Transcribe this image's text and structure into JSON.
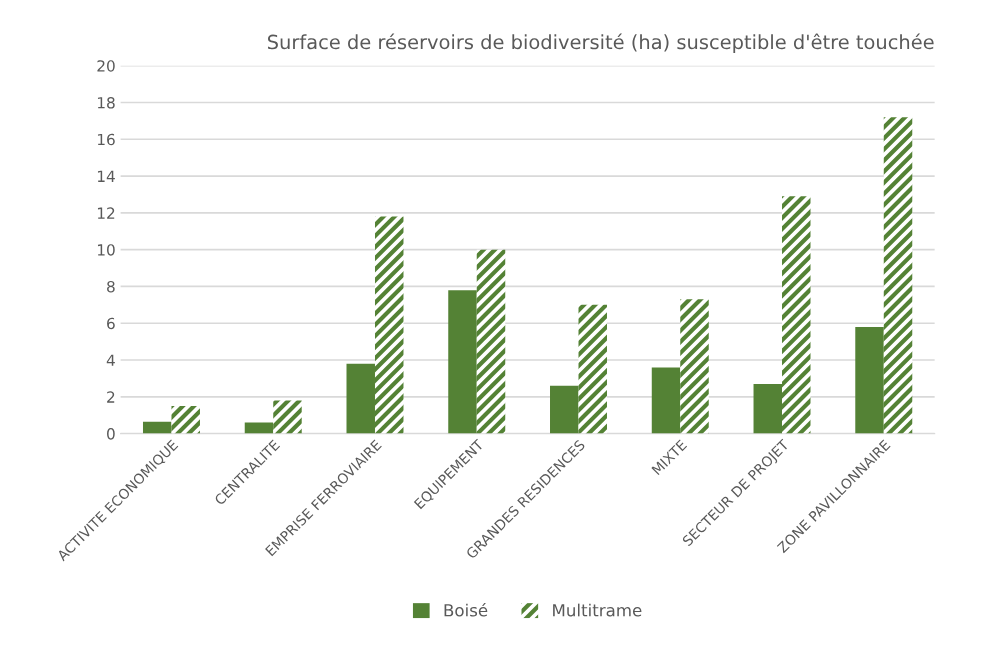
{
  "chart_data": {
    "type": "bar",
    "title": "Surface de réservoirs de biodiversité (ha) susceptible d'être touchée",
    "categories": [
      "ACTIVITE ECONOMIQUE",
      "CENTRALITE",
      "EMPRISE FERROVIAIRE",
      "EQUIPEMENT",
      "GRANDES RESIDENCES",
      "MIXTE",
      "SECTEUR DE PROJET",
      "ZONE PAVILLONNAIRE"
    ],
    "series": [
      {
        "name": "Boisé",
        "color": "#548235",
        "values": [
          0.65,
          0.6,
          3.8,
          7.8,
          2.6,
          3.6,
          2.7,
          5.8
        ]
      },
      {
        "name": "Multitrame",
        "color": "#548235",
        "values": [
          1.5,
          1.8,
          11.8,
          10.0,
          7.0,
          7.3,
          12.9,
          17.2
        ]
      }
    ],
    "ylim": [
      0,
      20
    ],
    "yticks": [
      0,
      2,
      4,
      6,
      8,
      10,
      12,
      14,
      16,
      18,
      20
    ],
    "grid": "y",
    "legend": "bottom"
  }
}
